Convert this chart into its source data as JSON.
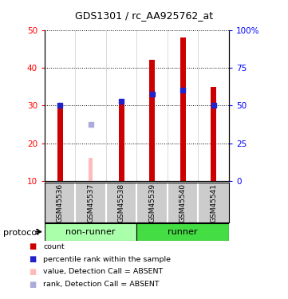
{
  "title": "GDS1301 / rc_AA925762_at",
  "samples": [
    "GSM45536",
    "GSM45537",
    "GSM45538",
    "GSM45539",
    "GSM45540",
    "GSM45541"
  ],
  "count_values": [
    30,
    null,
    31,
    42,
    48,
    35
  ],
  "count_absent_values": [
    null,
    16,
    null,
    null,
    null,
    null
  ],
  "rank_values": [
    30,
    null,
    31,
    33,
    34,
    30
  ],
  "rank_absent_values": [
    null,
    25,
    null,
    null,
    null,
    null
  ],
  "ylim_left": [
    10,
    50
  ],
  "yticks_left": [
    10,
    20,
    30,
    40,
    50
  ],
  "yticks_right": [
    0,
    25,
    50,
    75,
    100
  ],
  "ytick_labels_right": [
    "0",
    "25",
    "50",
    "75",
    "100%"
  ],
  "bar_color": "#cc0000",
  "bar_absent_color": "#ffbbbb",
  "rank_color": "#2222cc",
  "rank_absent_color": "#aaaadd",
  "bar_width": 0.18,
  "absent_bar_width": 0.12,
  "legend_items": [
    {
      "label": "count",
      "color": "#cc0000"
    },
    {
      "label": "percentile rank within the sample",
      "color": "#2222cc"
    },
    {
      "label": "value, Detection Call = ABSENT",
      "color": "#ffbbbb"
    },
    {
      "label": "rank, Detection Call = ABSENT",
      "color": "#aaaadd"
    }
  ],
  "background_color": "#ffffff",
  "sample_area_color": "#cccccc",
  "nonrunner_box_color": "#aaffaa",
  "runner_box_color": "#44dd44",
  "protocol_label": "protocol"
}
